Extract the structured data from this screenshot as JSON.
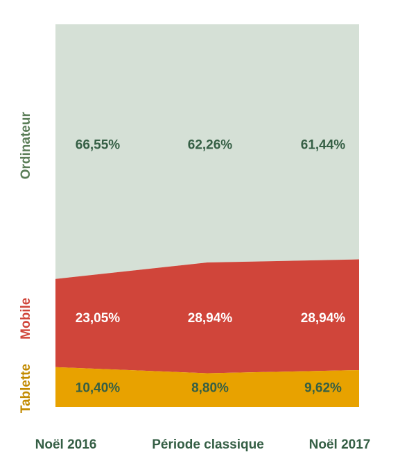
{
  "chart_data": {
    "type": "area",
    "stacking": "percent",
    "categories": [
      "Noël 2016",
      "Période classique",
      "Noël 2017"
    ],
    "series": [
      {
        "name": "Tablette",
        "values": [
          10.4,
          8.8,
          9.62
        ],
        "labels": [
          "10,40%",
          "8,80%",
          "9,62%"
        ],
        "color": "#e8a200",
        "label_color": "#355f45"
      },
      {
        "name": "Mobile",
        "values": [
          23.05,
          28.94,
          28.94
        ],
        "labels": [
          "23,05%",
          "28,94%",
          "28,94%"
        ],
        "color": "#d0453a",
        "label_color": "#ffffff"
      },
      {
        "name": "Ordinateur",
        "values": [
          66.55,
          62.26,
          61.44
        ],
        "labels": [
          "66,55%",
          "62,26%",
          "61,44%"
        ],
        "color": "#d5e0d6",
        "label_color": "#355f45"
      }
    ],
    "series_title_colors": {
      "Tablette": "#c28a00",
      "Mobile": "#d0453a",
      "Ordinateur": "#5a7d57"
    },
    "ylim": [
      0,
      100
    ],
    "legend": "left-side-vertical"
  }
}
